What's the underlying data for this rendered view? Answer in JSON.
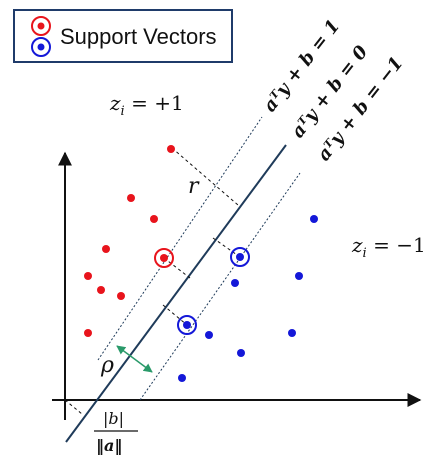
{
  "legend": {
    "label": "Support Vectors"
  },
  "labels": {
    "z_pos": "z",
    "z_pos_sub": "i",
    "z_pos_rhs": " = +1",
    "z_neg": "z",
    "z_neg_sub": "i",
    "z_neg_rhs": " = −1",
    "r": "r",
    "rho": "ρ",
    "b_num": "|b|",
    "b_den": "‖a‖",
    "line_upper": "aᵀy + b = 1",
    "line_center": "aᵀy + b = 0",
    "line_lower": "aᵀy + b = −1"
  },
  "colors": {
    "positive": "#e8141c",
    "negative": "#1418d8",
    "boundary": "#1f3b5a",
    "margin_arrow": "#2a9a6a",
    "axis": "#111111",
    "legend_border": "#1f3b6a"
  }
}
